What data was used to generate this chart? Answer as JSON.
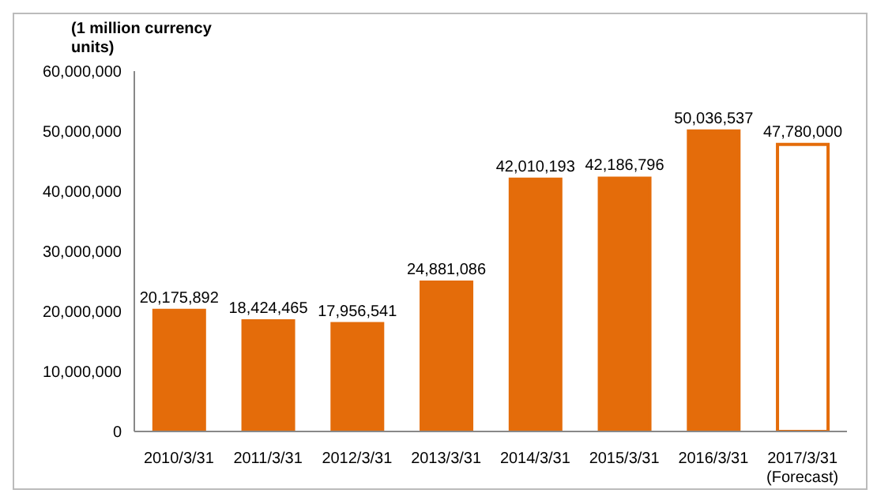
{
  "chart_data": {
    "type": "bar",
    "ylabel": "(1 million currency units)",
    "categories": [
      "2010/3/31",
      "2011/3/31",
      "2012/3/31",
      "2013/3/31",
      "2014/3/31",
      "2015/3/31",
      "2016/3/31",
      "2017/3/31\n(Forecast)"
    ],
    "values": [
      20175892,
      18424465,
      17956541,
      24881086,
      42010193,
      42186796,
      50036537,
      47780000
    ],
    "value_labels": [
      "20,175,892",
      "18,424,465",
      "17,956,541",
      "24,881,086",
      "42,010,193",
      "42,186,796",
      "50,036,537",
      "47,780,000"
    ],
    "color": "#e46c0a",
    "colors": [
      "#e46c0a",
      "#e46c0a",
      "#e46c0a",
      "#e46c0a",
      "#e46c0a",
      "#e46c0a",
      "#e46c0a",
      "#ffffff"
    ],
    "ylim": [
      0,
      60000000
    ],
    "yticks": [
      0,
      {
        "value": 10000000,
        "label": "10,000,000"
      },
      {
        "value": 20000000,
        "label": "20,000,000"
      },
      {
        "value": 30000000,
        "label": "30,000,000"
      },
      {
        "value": 40000000,
        "label": "40,000,000"
      },
      {
        "value": 50000000,
        "label": "50,000,000"
      },
      {
        "value": 60000000,
        "label": "60,000,000"
      }
    ],
    "grid": false
  }
}
